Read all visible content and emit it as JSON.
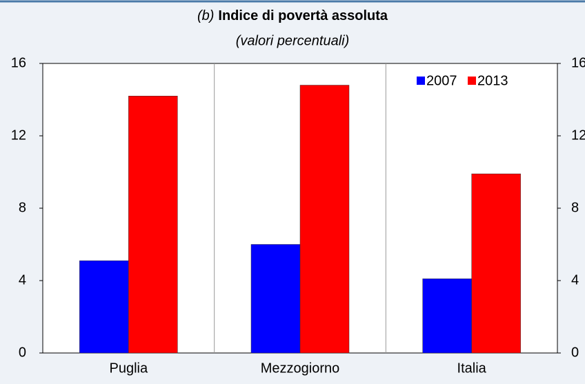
{
  "chart_data": {
    "type": "bar",
    "title_label": "(b)",
    "title": "Indice di povertà assoluta",
    "subtitle": "(valori percentuali)",
    "categories": [
      "Puglia",
      "Mezzogiorno",
      "Italia"
    ],
    "series": [
      {
        "name": "2007",
        "color": "#0000ff",
        "values": [
          5.1,
          6.0,
          4.1
        ]
      },
      {
        "name": "2013",
        "color": "#ff0000",
        "values": [
          14.2,
          14.8,
          9.9
        ]
      }
    ],
    "ylim": [
      0,
      16
    ],
    "yticks": [
      0,
      4,
      8,
      12,
      16
    ],
    "y2lim": [
      0,
      16
    ],
    "y2ticks": [
      0,
      4,
      8,
      12,
      16
    ],
    "legend": "top-right"
  }
}
